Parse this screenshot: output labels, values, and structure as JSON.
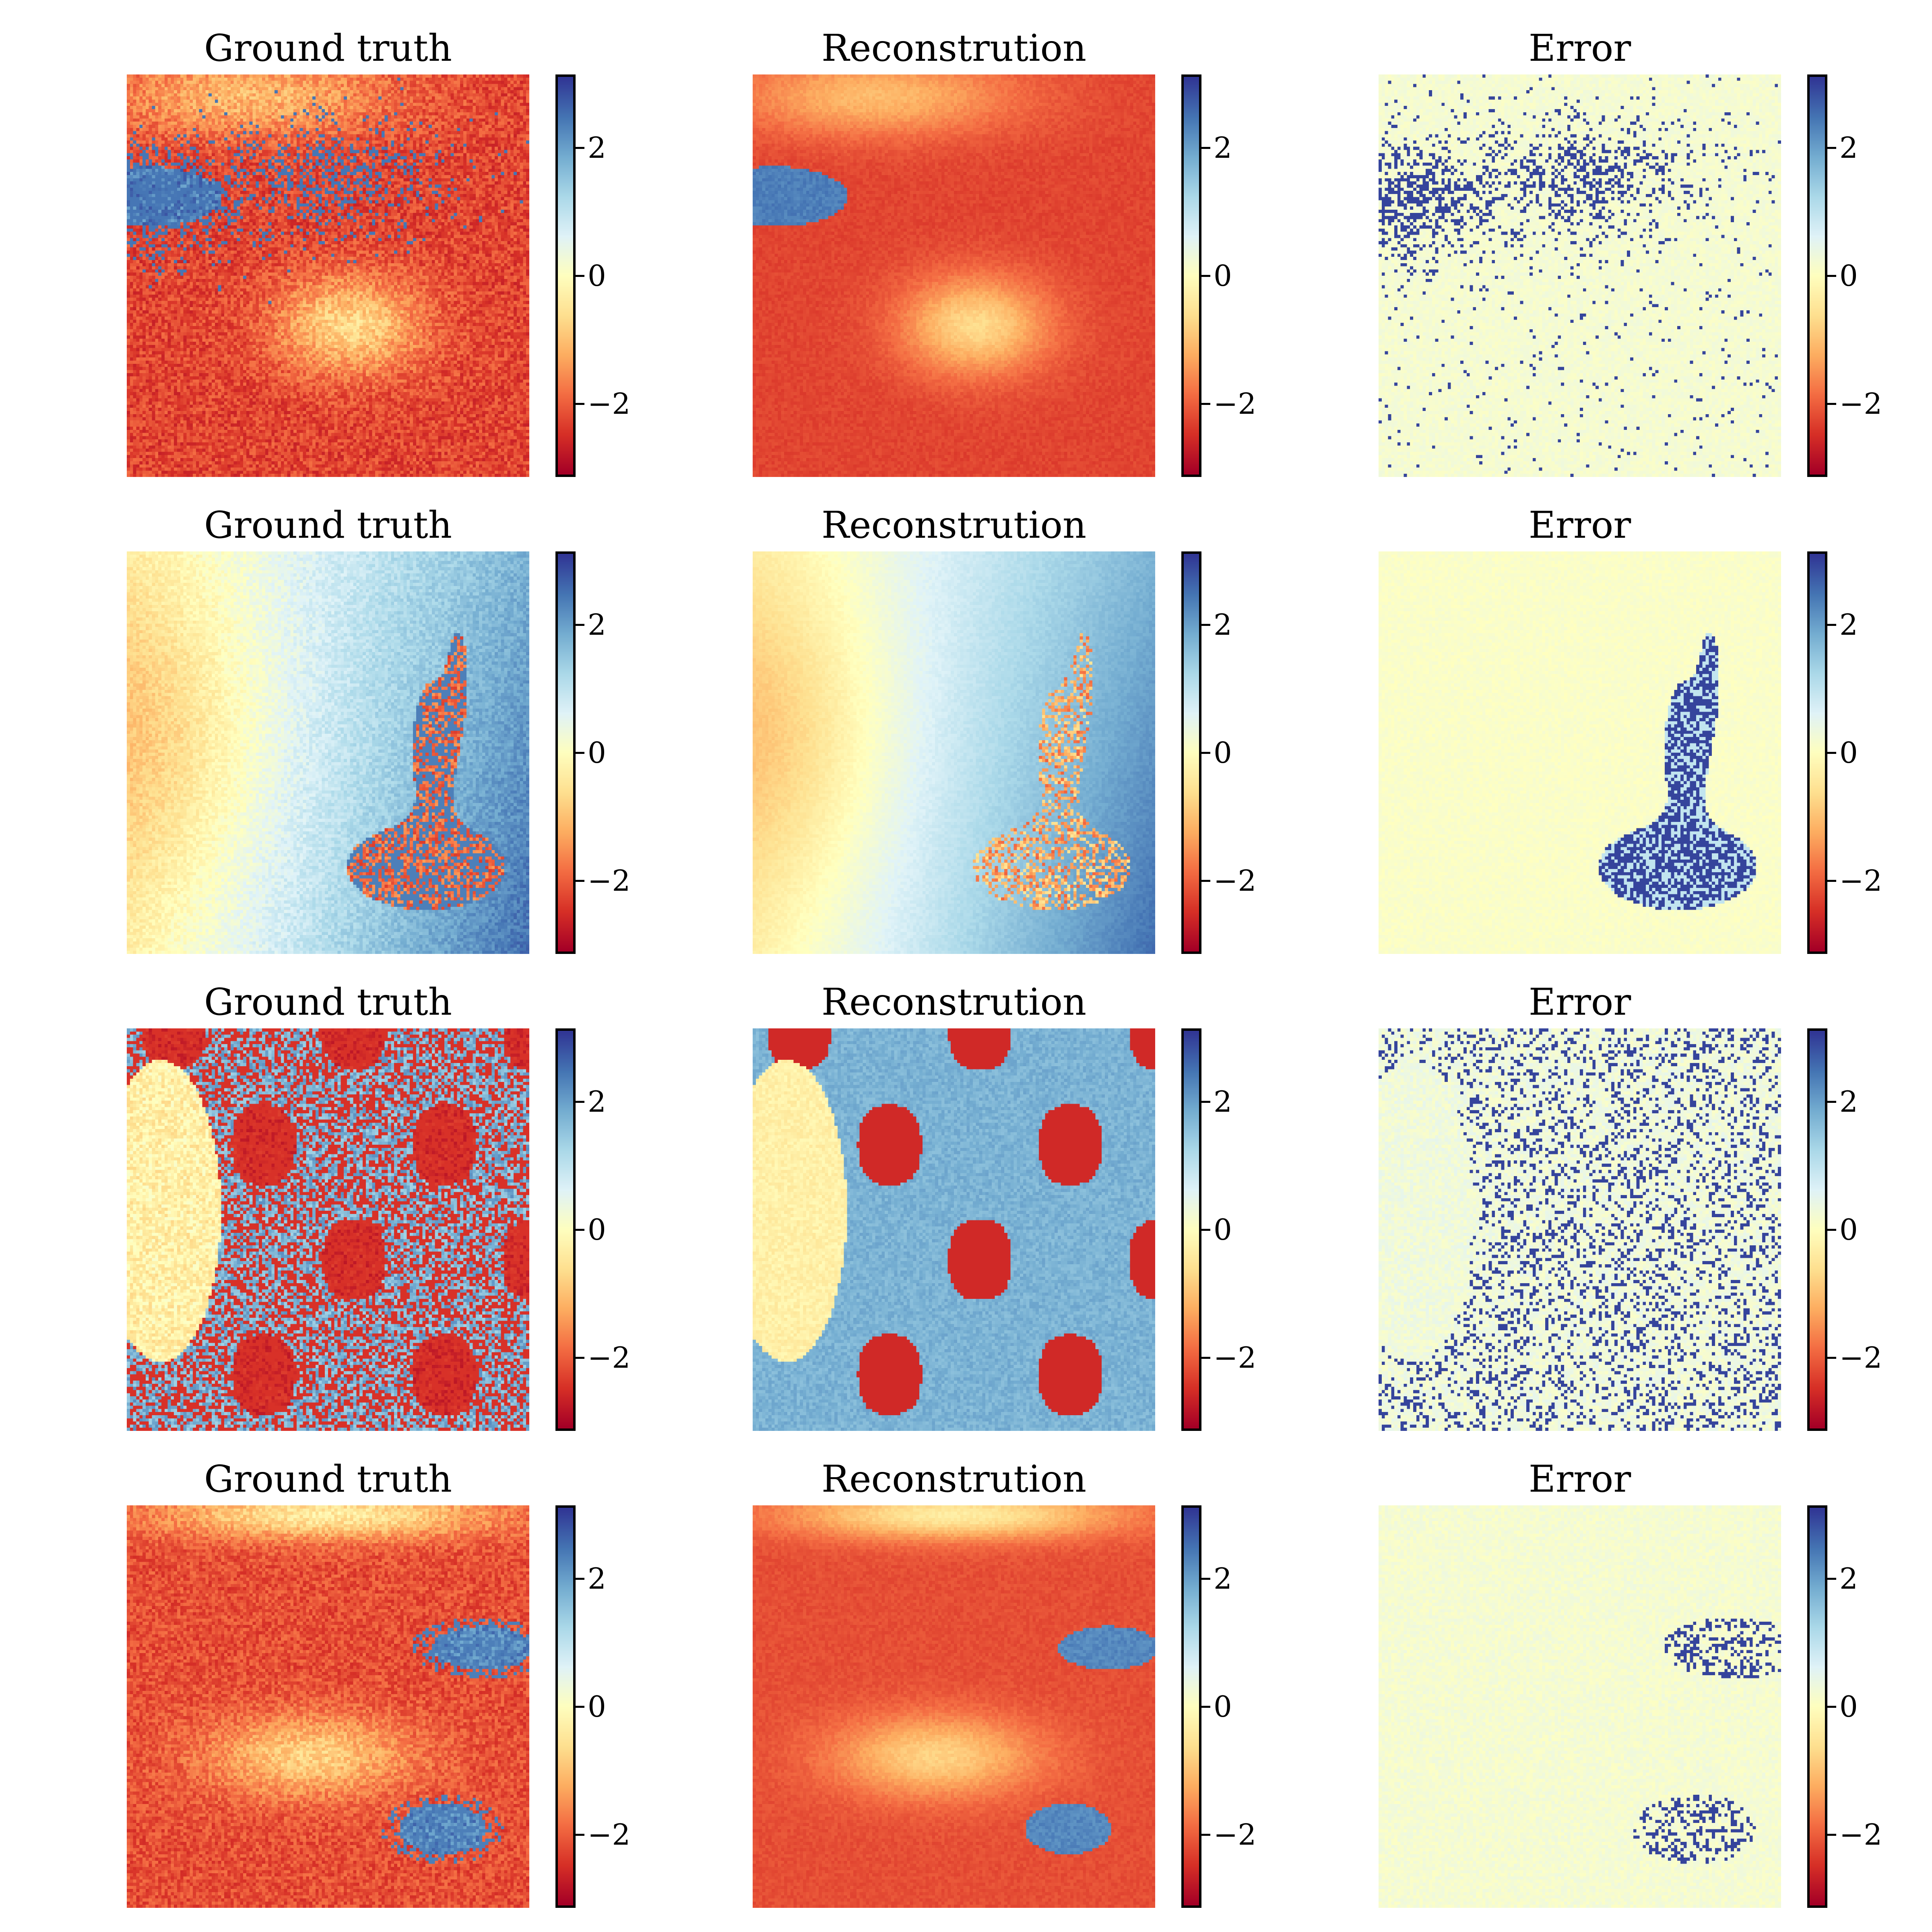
{
  "chart_data": {
    "type": "heatmap",
    "colormap": "RdYlBu",
    "colorbar_range": [
      -3.14,
      3.14
    ],
    "colorbar_ticks": [
      {
        "value": 2,
        "label": "2"
      },
      {
        "value": 0,
        "label": "0"
      },
      {
        "value": -2,
        "label": "−2"
      }
    ],
    "grid_size": [
      128,
      128
    ],
    "rows": [
      {
        "panels": [
          {
            "title": "Ground truth"
          },
          {
            "title": "Reconstrution"
          },
          {
            "title": "Error"
          }
        ]
      },
      {
        "panels": [
          {
            "title": "Ground truth"
          },
          {
            "title": "Reconstrution"
          },
          {
            "title": "Error"
          }
        ]
      },
      {
        "panels": [
          {
            "title": "Ground truth"
          },
          {
            "title": "Reconstrution"
          },
          {
            "title": "Error"
          }
        ]
      },
      {
        "panels": [
          {
            "title": "Ground truth"
          },
          {
            "title": "Reconstrution"
          },
          {
            "title": "Error"
          }
        ]
      }
    ]
  }
}
